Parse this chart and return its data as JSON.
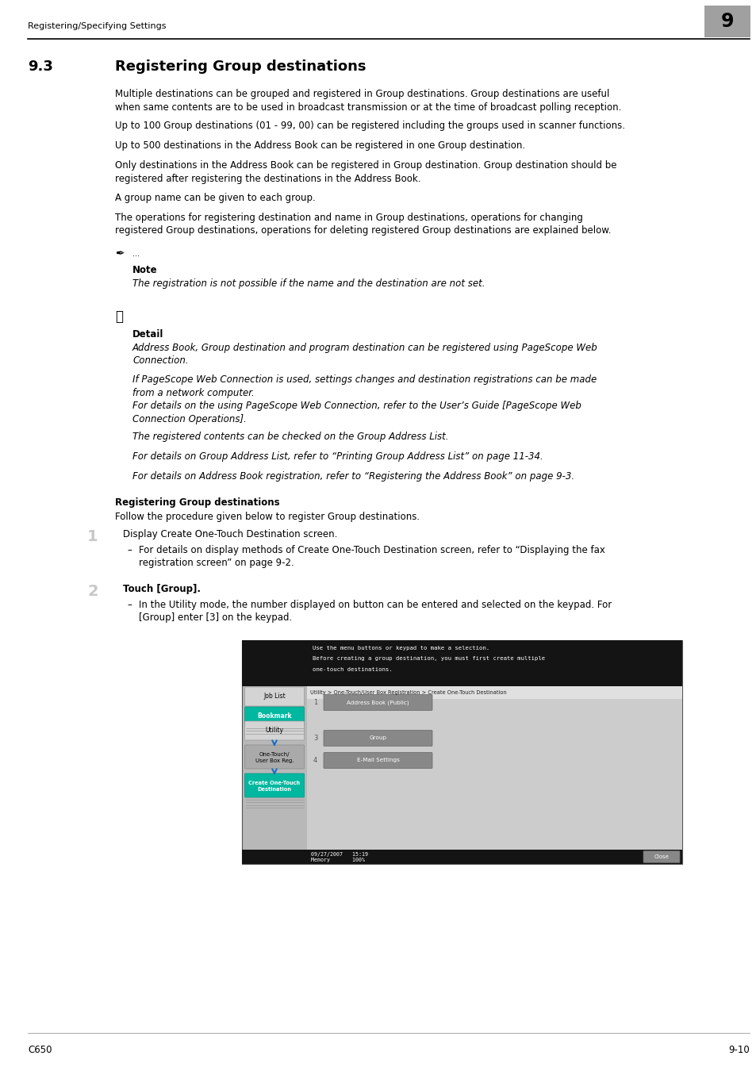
{
  "page_header": "Registering/Specifying Settings",
  "chapter_num": "9",
  "section_num": "9.3",
  "section_title": "Registering Group destinations",
  "paragraphs": [
    "Multiple destinations can be grouped and registered in Group destinations. Group destinations are useful\nwhen same contents are to be used in broadcast transmission or at the time of broadcast polling reception.",
    "Up to 100 Group destinations (01 - 99, 00) can be registered including the groups used in scanner functions.",
    "Up to 500 destinations in the Address Book can be registered in one Group destination.",
    "Only destinations in the Address Book can be registered in Group destination. Group destination should be\nregistered after registering the destinations in the Address Book.",
    "A group name can be given to each group.",
    "The operations for registering destination and name in Group destinations, operations for changing\nregistered Group destinations, operations for deleting registered Group destinations are explained below."
  ],
  "note_text": "The registration is not possible if the name and the destination are not set.",
  "detail_paragraphs": [
    "Address Book, Group destination and program destination can be registered using PageScope Web\nConnection.",
    "If PageScope Web Connection is used, settings changes and destination registrations can be made\nfrom a network computer.\nFor details on the using PageScope Web Connection, refer to the User’s Guide [PageScope Web\nConnection Operations].",
    "The registered contents can be checked on the Group Address List.",
    "For details on Group Address List, refer to “Printing Group Address List” on page 11-34.",
    "For details on Address Book registration, refer to “Registering the Address Book” on page 9-3."
  ],
  "reg_group_bold": "Registering Group destinations",
  "follow_text": "Follow the procedure given below to register Group destinations.",
  "step1_num": "1",
  "step1_text": "Display Create One-Touch Destination screen.",
  "step1_bullet": "For details on display methods of Create One-Touch Destination screen, refer to “Displaying the fax\nregistration screen” on page 9-2.",
  "step2_num": "2",
  "step2_text": "Touch [Group].",
  "step2_bullet": "In the Utility mode, the number displayed on button can be entered and selected on the keypad. For\n[Group] enter [3] on the keypad.",
  "footer_left": "C650",
  "footer_right": "9-10",
  "bg_color": "#ffffff",
  "text_color": "#000000",
  "header_line_color": "#000000",
  "chapter_box_color": "#a0a0a0",
  "teal_color": "#00b8a0",
  "screen_bg": "#b8b8b8",
  "screen_dark": "#141414",
  "arrow_color": "#1a6fc4"
}
